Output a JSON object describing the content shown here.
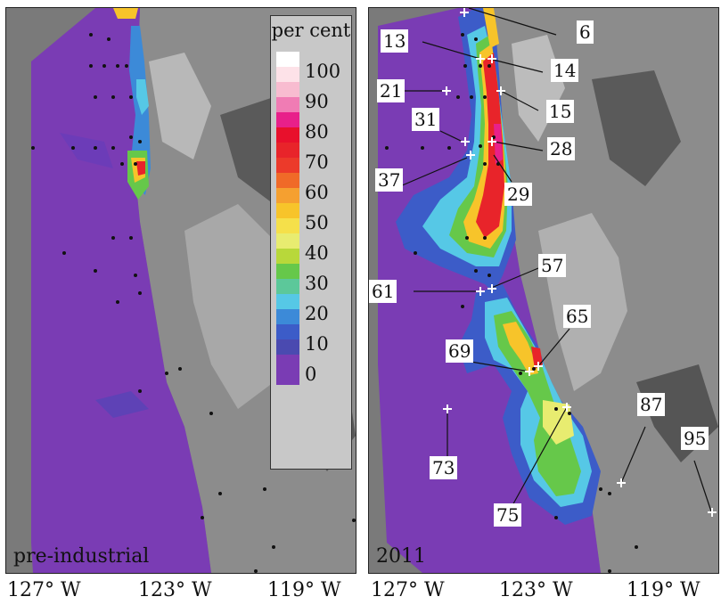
{
  "panels": {
    "left": {
      "label": "pre-industrial"
    },
    "right": {
      "label": "2011"
    }
  },
  "axis": {
    "ticks_left": [
      "127° W",
      "123° W",
      "119° W"
    ],
    "ticks_right": [
      "127° W",
      "123° W",
      "119° W"
    ]
  },
  "legend": {
    "title": "per cent",
    "entries": [
      {
        "value": "100",
        "color": "#ffffff"
      },
      {
        "value": "",
        "color": "#fde2e8"
      },
      {
        "value": "90",
        "color": "#f8bcd0"
      },
      {
        "value": "",
        "color": "#f07cb4"
      },
      {
        "value": "80",
        "color": "#e8208a"
      },
      {
        "value": "",
        "color": "#e8102c"
      },
      {
        "value": "70",
        "color": "#e8242a"
      },
      {
        "value": "",
        "color": "#ec3a2a"
      },
      {
        "value": "60",
        "color": "#f06a28"
      },
      {
        "value": "",
        "color": "#f5a030"
      },
      {
        "value": "50",
        "color": "#f7c42a"
      },
      {
        "value": "",
        "color": "#f5e04a"
      },
      {
        "value": "40",
        "color": "#e8ec70"
      },
      {
        "value": "",
        "color": "#b8d83a"
      },
      {
        "value": "30",
        "color": "#66c84a"
      },
      {
        "value": "",
        "color": "#5cc89a"
      },
      {
        "value": "20",
        "color": "#56c8e6"
      },
      {
        "value": "",
        "color": "#3c8ad8"
      },
      {
        "value": "10",
        "color": "#3c5cc8"
      },
      {
        "value": "",
        "color": "#4a4ab0"
      },
      {
        "value": "0",
        "color": "#7a3cb4"
      }
    ]
  },
  "sites": [
    {
      "id": "6"
    },
    {
      "id": "13"
    },
    {
      "id": "14"
    },
    {
      "id": "21"
    },
    {
      "id": "15"
    },
    {
      "id": "31"
    },
    {
      "id": "28"
    },
    {
      "id": "37"
    },
    {
      "id": "29"
    },
    {
      "id": "57"
    },
    {
      "id": "61"
    },
    {
      "id": "65"
    },
    {
      "id": "69"
    },
    {
      "id": "87"
    },
    {
      "id": "95"
    },
    {
      "id": "73"
    },
    {
      "id": "75"
    }
  ]
}
